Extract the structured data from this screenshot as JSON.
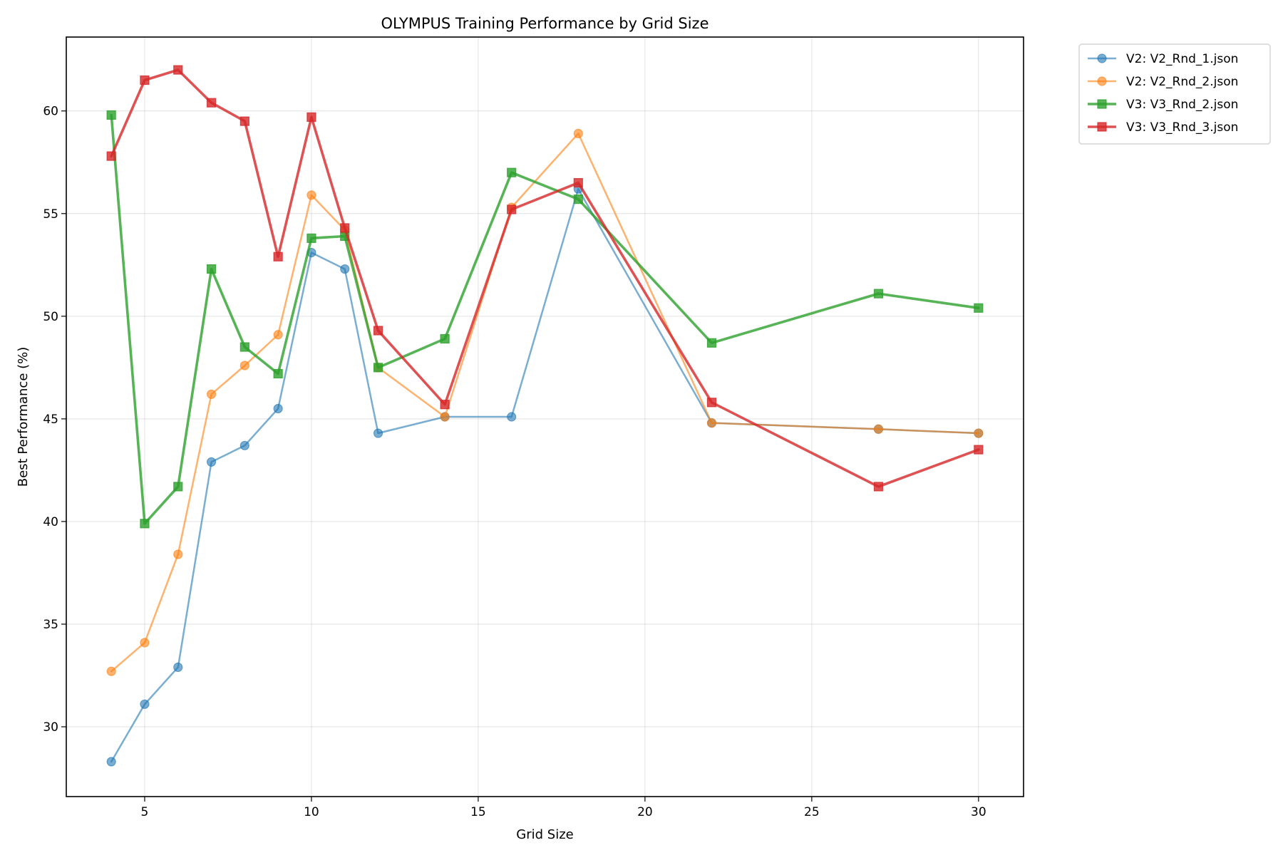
{
  "chart_data": {
    "type": "line",
    "title": "OLYMPUS Training Performance by Grid Size",
    "xlabel": "Grid Size",
    "ylabel": "Best Performance (%)",
    "xlim": [
      2.65,
      31.35
    ],
    "ylim": [
      26.6,
      63.6
    ],
    "xticks": [
      5,
      10,
      15,
      20,
      25,
      30
    ],
    "yticks": [
      30,
      35,
      40,
      45,
      50,
      55,
      60
    ],
    "grid": true,
    "legend_position": "outside-top-right",
    "series": [
      {
        "name": "V2: V2_Rnd_1.json",
        "color": "#1f77b4",
        "marker": "circle",
        "alpha": 0.6,
        "weight": "thin",
        "x": [
          4,
          5,
          6,
          7,
          8,
          9,
          10,
          11,
          12,
          14,
          16,
          18,
          22,
          27,
          30
        ],
        "y": [
          28.3,
          31.1,
          32.9,
          42.9,
          43.7,
          45.5,
          53.1,
          52.3,
          44.3,
          45.1,
          45.1,
          56.2,
          44.8,
          44.5,
          44.3
        ]
      },
      {
        "name": "V2: V2_Rnd_2.json",
        "color": "#ff7f0e",
        "marker": "circle",
        "alpha": 0.6,
        "weight": "thin",
        "x": [
          4,
          5,
          6,
          7,
          8,
          9,
          10,
          11,
          12,
          14,
          16,
          18,
          22,
          27,
          30
        ],
        "y": [
          32.7,
          34.1,
          38.4,
          46.2,
          47.6,
          49.1,
          55.9,
          54.2,
          47.5,
          45.1,
          55.3,
          58.9,
          44.8,
          44.5,
          44.3
        ]
      },
      {
        "name": "V3: V3_Rnd_2.json",
        "color": "#2ca02c",
        "marker": "square",
        "alpha": 0.8,
        "weight": "thick",
        "x": [
          4,
          5,
          6,
          7,
          8,
          9,
          10,
          11,
          12,
          14,
          16,
          18,
          22,
          27,
          30
        ],
        "y": [
          59.8,
          39.9,
          41.7,
          52.3,
          48.5,
          47.2,
          53.8,
          53.9,
          47.5,
          48.9,
          57.0,
          55.7,
          48.7,
          51.1,
          50.4
        ]
      },
      {
        "name": "V3: V3_Rnd_3.json",
        "color": "#d62728",
        "marker": "square",
        "alpha": 0.8,
        "weight": "thick",
        "x": [
          4,
          5,
          6,
          7,
          8,
          9,
          10,
          11,
          12,
          14,
          16,
          18,
          22,
          27,
          30
        ],
        "y": [
          57.8,
          61.5,
          62.0,
          60.4,
          59.5,
          52.9,
          59.7,
          54.3,
          49.3,
          45.7,
          55.2,
          56.5,
          45.8,
          41.7,
          43.5
        ]
      }
    ]
  }
}
